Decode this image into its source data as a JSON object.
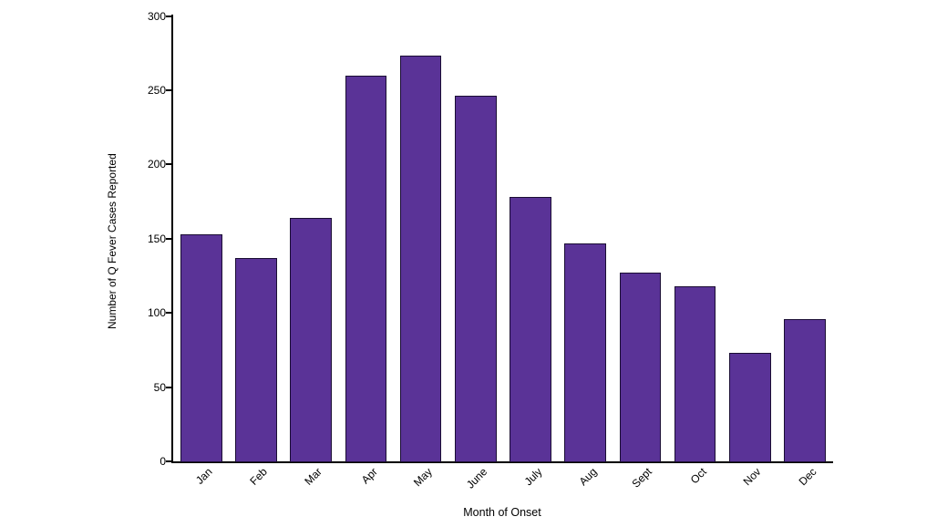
{
  "chart_data": {
    "type": "bar",
    "title": "",
    "xlabel": "Month of Onset",
    "ylabel": "Number of Q Fever Cases Reported",
    "categories": [
      "Jan",
      "Feb",
      "Mar",
      "Apr",
      "May",
      "June",
      "July",
      "Aug",
      "Sept",
      "Oct",
      "Nov",
      "Dec"
    ],
    "values": [
      153,
      137,
      164,
      260,
      273,
      246,
      178,
      147,
      127,
      118,
      73,
      96
    ],
    "ylim": [
      0,
      300
    ],
    "yticks": [
      0,
      50,
      100,
      150,
      200,
      250,
      300
    ],
    "grid": "off",
    "legend": "none",
    "bar_color": "#5a3397",
    "bar_border_color": "#1a0d33",
    "axis_color": "#000000",
    "background_color": "#ffffff"
  }
}
